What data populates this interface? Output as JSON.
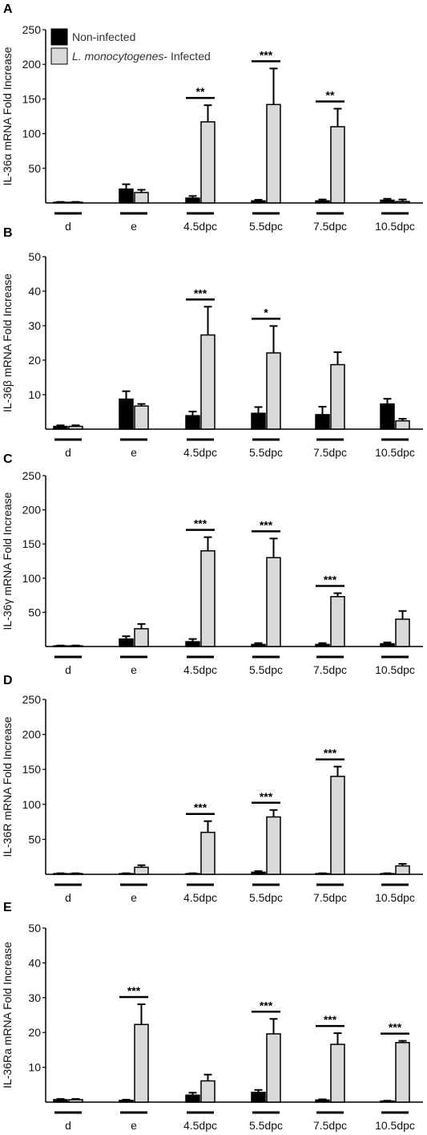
{
  "colors": {
    "non_infected": "#000000",
    "infected": "#d9d9d9",
    "axis": "#000000"
  },
  "legend": {
    "non_infected": "Non-infected",
    "infected_italic": "L. monocytogenes",
    "infected_rest": "- Infected"
  },
  "chart_data": [
    {
      "type": "bar",
      "panel": "A",
      "ylabel": "IL-36α  mRNA Fold Increase",
      "ylim": [
        0,
        250
      ],
      "yticks": [
        50,
        100,
        150,
        200,
        250
      ],
      "categories": [
        "d",
        "e",
        "4.5dpc",
        "5.5dpc",
        "7.5dpc",
        "10.5dpc"
      ],
      "series": [
        {
          "name": "Non-infected",
          "values": [
            1,
            20,
            7,
            3,
            3,
            4
          ],
          "errors": [
            0.5,
            7,
            3,
            1.5,
            2,
            2
          ]
        },
        {
          "name": "L. monocytogenes- Infected",
          "values": [
            1,
            15,
            117,
            142,
            110,
            2
          ],
          "errors": [
            0.5,
            4,
            24,
            52,
            26,
            3
          ]
        }
      ],
      "significance": [
        "",
        "",
        "**",
        "***",
        "**",
        ""
      ]
    },
    {
      "type": "bar",
      "panel": "B",
      "ylabel": "IL-36β  mRNA Fold Increase",
      "ylim": [
        0,
        50
      ],
      "yticks": [
        10,
        20,
        30,
        40,
        50
      ],
      "categories": [
        "d",
        "e",
        "4.5dpc",
        "5.5dpc",
        "7.5dpc",
        "10.5dpc"
      ],
      "series": [
        {
          "values": [
            0.8,
            8.7,
            3.9,
            4.6,
            4.2,
            7.3
          ],
          "errors": [
            0.3,
            2.3,
            1.2,
            1.8,
            2.3,
            1.5
          ]
        },
        {
          "values": [
            0.8,
            6.7,
            27.3,
            22.1,
            18.7,
            2.4
          ],
          "errors": [
            0.3,
            0.6,
            8.2,
            7.8,
            3.6,
            0.6
          ]
        }
      ],
      "significance": [
        "",
        "",
        "***",
        "*",
        "",
        ""
      ]
    },
    {
      "type": "bar",
      "panel": "C",
      "ylabel": "IL-36γ  mRNA Fold Increase",
      "ylim": [
        0,
        250
      ],
      "yticks": [
        50,
        100,
        150,
        200,
        250
      ],
      "categories": [
        "d",
        "e",
        "4.5dpc",
        "5.5dpc",
        "7.5dpc",
        "10.5dpc"
      ],
      "series": [
        {
          "values": [
            1,
            11,
            7,
            3,
            3,
            4
          ],
          "errors": [
            0.5,
            4,
            4,
            2,
            2,
            2
          ]
        },
        {
          "values": [
            1,
            26,
            140,
            130,
            73,
            40
          ],
          "errors": [
            0.5,
            7,
            20,
            28,
            5,
            12
          ]
        }
      ],
      "significance": [
        "",
        "",
        "***",
        "***",
        "***",
        ""
      ]
    },
    {
      "type": "bar",
      "panel": "D",
      "ylabel": "IL-36R  mRNA Fold Increase",
      "ylim": [
        0,
        250
      ],
      "yticks": [
        50,
        100,
        150,
        200,
        250
      ],
      "categories": [
        "d",
        "e",
        "4.5dpc",
        "5.5dpc",
        "7.5dpc",
        "10.5dpc"
      ],
      "series": [
        {
          "values": [
            1,
            1,
            1,
            3,
            1,
            1
          ],
          "errors": [
            0.5,
            0.5,
            0.5,
            1.5,
            0.5,
            0.5
          ]
        },
        {
          "values": [
            1,
            10,
            60,
            82,
            140,
            12
          ],
          "errors": [
            0.5,
            3,
            16,
            10,
            14,
            3
          ]
        }
      ],
      "significance": [
        "",
        "",
        "***",
        "***",
        "***",
        ""
      ]
    },
    {
      "type": "bar",
      "panel": "E",
      "ylabel": "IL-36Ra  mRNA Fold Increase",
      "ylim": [
        0,
        50
      ],
      "yticks": [
        10,
        20,
        30,
        40,
        50
      ],
      "categories": [
        "d",
        "e",
        "4.5dpc",
        "5.5dpc",
        "7.5dpc",
        "10.5dpc"
      ],
      "series": [
        {
          "values": [
            0.7,
            0.5,
            2,
            2.8,
            0.6,
            0.3
          ],
          "errors": [
            0.2,
            0.2,
            0.7,
            0.7,
            0.2,
            0.1
          ]
        },
        {
          "values": [
            0.7,
            22.3,
            6.1,
            19.6,
            16.6,
            17.1
          ],
          "errors": [
            0.2,
            5.8,
            1.8,
            4.3,
            3.2,
            0.5
          ]
        }
      ],
      "significance": [
        "",
        "***",
        "",
        "***",
        "***",
        "***"
      ]
    }
  ]
}
